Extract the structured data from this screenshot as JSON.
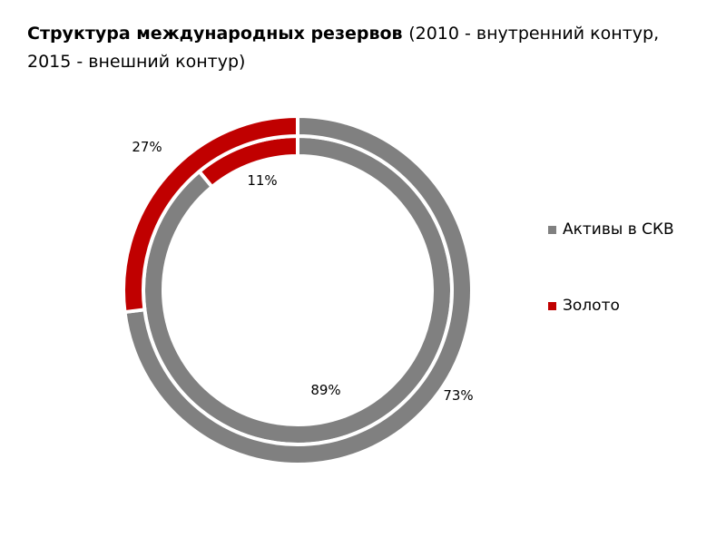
{
  "title": {
    "bold": "Структура международных резервов",
    "rest": "(2010 - внутренний контур, 2015 - внешний контур)"
  },
  "chart_data": {
    "type": "pie",
    "variant": "donut",
    "categories": [
      "Активы в СКВ",
      "Золото"
    ],
    "series": [
      {
        "name": "2010",
        "ring": "inner",
        "values": [
          89,
          11
        ],
        "labels": [
          "89%",
          "11%"
        ]
      },
      {
        "name": "2015",
        "ring": "outer",
        "values": [
          73,
          27
        ],
        "labels": [
          "73%",
          "27%"
        ]
      }
    ],
    "colors": {
      "Активы в СКВ": "#808080",
      "Золото": "#c00000"
    },
    "legend_position": "right"
  },
  "legend": [
    {
      "label": "Активы в СКВ",
      "color": "#808080"
    },
    {
      "label": "Золото",
      "color": "#c00000"
    }
  ]
}
